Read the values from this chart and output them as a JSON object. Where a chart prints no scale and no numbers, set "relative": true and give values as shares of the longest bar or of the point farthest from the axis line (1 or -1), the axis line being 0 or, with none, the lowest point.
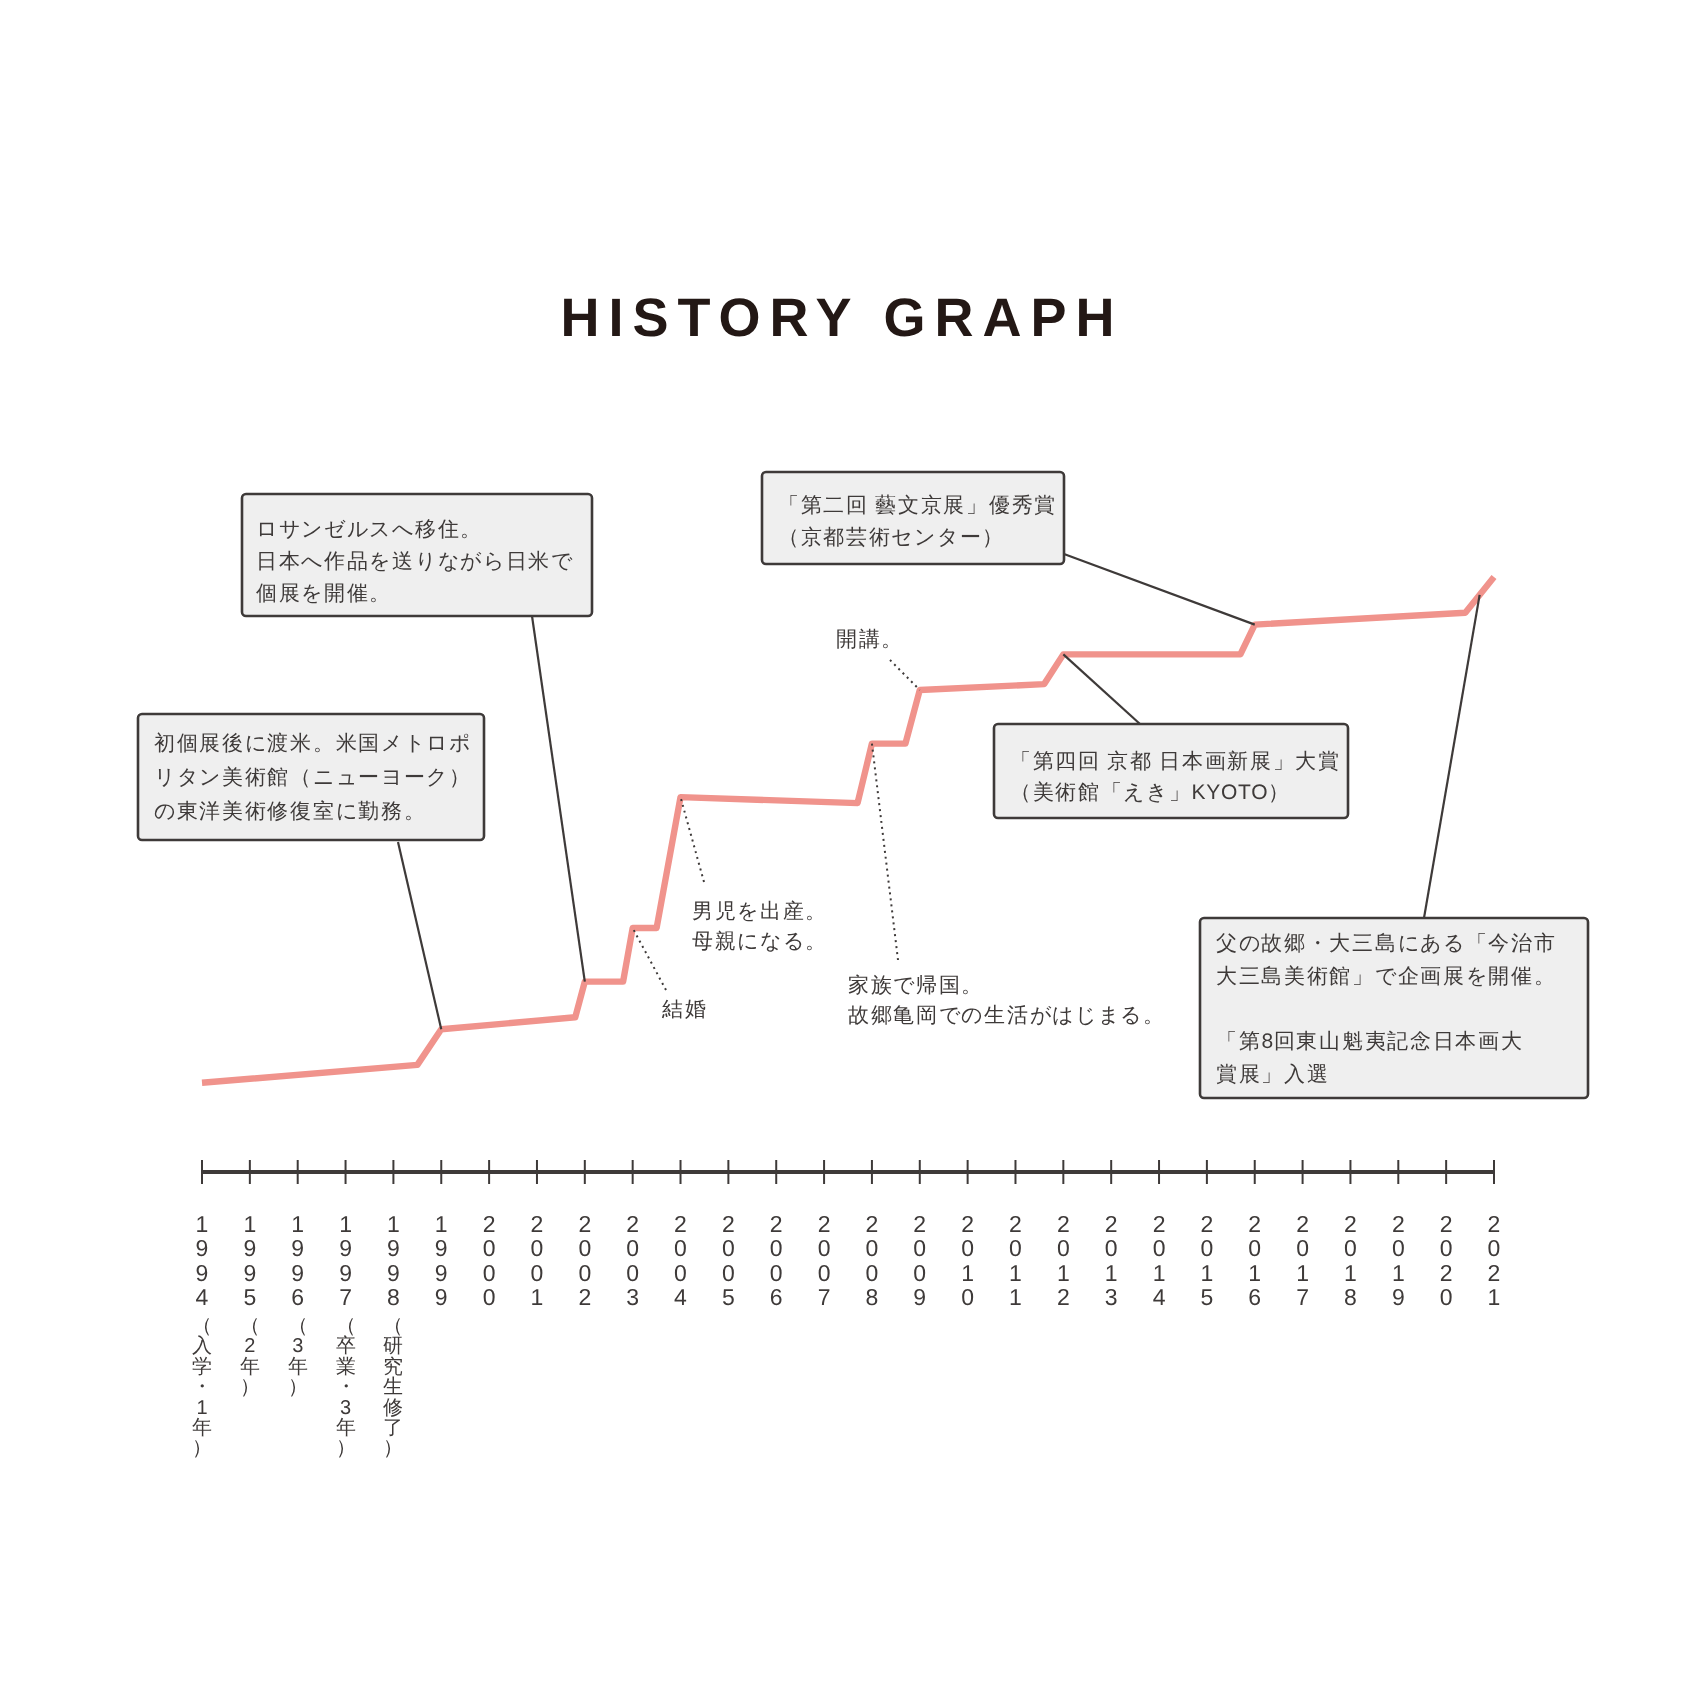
{
  "chart_data": {
    "type": "line",
    "title": "HISTORY GRAPH",
    "relative": true,
    "x": [
      1994,
      1998.5,
      1999,
      2001.8,
      2002,
      2002.8,
      2003,
      2003.5,
      2004,
      2007.7,
      2008,
      2008.7,
      2009,
      2011.6,
      2012,
      2015.7,
      2016,
      2020.4,
      2021
    ],
    "series": [
      {
        "color": "#f0938c",
        "values": [
          0.15,
          0.18,
          0.24,
          0.26,
          0.32,
          0.32,
          0.41,
          0.41,
          0.63,
          0.62,
          0.72,
          0.72,
          0.81,
          0.82,
          0.87,
          0.87,
          0.92,
          0.94,
          1
        ]
      }
    ],
    "xlim": [
      1994,
      2021
    ],
    "xticks": [
      1994,
      1995,
      1996,
      1997,
      1998,
      1999,
      2000,
      2001,
      2002,
      2003,
      2004,
      2005,
      2006,
      2007,
      2008,
      2009,
      2010,
      2011,
      2012,
      2013,
      2014,
      2015,
      2016,
      2017,
      2018,
      2019,
      2020,
      2021
    ],
    "annotations": [
      {
        "text": "初個展後に渡米。米国メトロポリタン美術館（ニューヨーク）の東洋美術修復室に勤務。",
        "x": 1999,
        "y": 0.24
      },
      {
        "text": "ロサンゼルスへ移住。日本へ作品を送りながら日米で個展を開催。",
        "x": 2002,
        "y": 0.32
      },
      {
        "text": "結婚",
        "x": 2003,
        "y": 0.41
      },
      {
        "text": "男児を出産。母親になる。",
        "x": 2004,
        "y": 0.63
      },
      {
        "text": "家族で帰国。故郷亀岡での生活がはじまる。",
        "x": 2008,
        "y": 0.72
      },
      {
        "text": "開講。",
        "x": 2009,
        "y": 0.81
      },
      {
        "text": "「第四回 京都 日本画新展」大賞（美術館「えき」KYOTO）",
        "x": 2012,
        "y": 0.87
      },
      {
        "text": "「第二回 藝文京展」優秀賞（京都芸術センター）",
        "x": 2016,
        "y": 0.92
      },
      {
        "text": "父の故郷・大三島にある「今治市大三島美術館」で企画展を開催。",
        "x": 2020.7,
        "y": 0.97
      },
      "「第8回東山魁夷記念日本画大賞展」入選",
      "（入学・1年）",
      "（2年）",
      "（3年）",
      "（卒業・3年）",
      "（研究生修了）"
    ]
  }
}
